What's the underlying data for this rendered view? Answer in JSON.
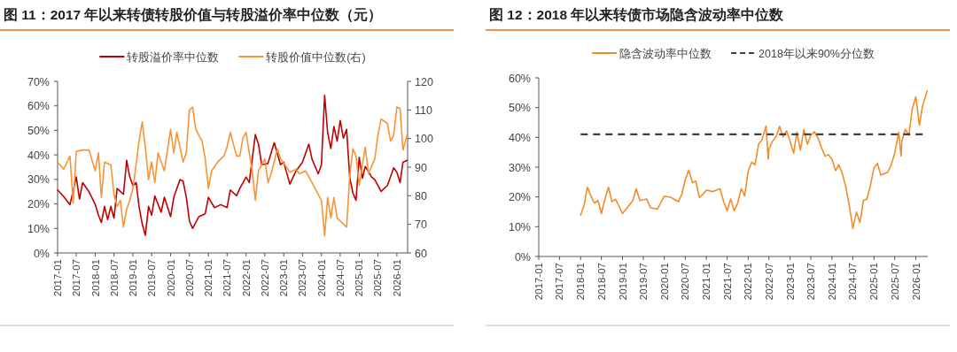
{
  "chart_data": [
    {
      "type": "line",
      "title": "图 11：2017 年以来转债转股价值与转股溢价率中位数（元）",
      "legend": "top",
      "grid": false,
      "xlim": [
        "2017-01",
        "2026-04-15"
      ],
      "xticks": [
        "2017-01",
        "2017-07",
        "2018-01",
        "2018-07",
        "2019-01",
        "2019-07",
        "2020-01",
        "2020-07",
        "2021-01",
        "2021-07",
        "2022-01",
        "2022-07",
        "2023-01",
        "2023-07",
        "2024-01",
        "2024-07",
        "2025-01",
        "2025-07",
        "2026-01"
      ],
      "ylim": [
        0,
        70
      ],
      "yticks": [
        {
          "value": 0,
          "label": "0%"
        },
        {
          "value": 10,
          "label": "10%"
        },
        {
          "value": 20,
          "label": "20%"
        },
        {
          "value": 30,
          "label": "30%"
        },
        {
          "value": 40,
          "label": "40%"
        },
        {
          "value": 50,
          "label": "50%"
        },
        {
          "value": 60,
          "label": "60%"
        },
        {
          "value": 70,
          "label": "70%"
        }
      ],
      "y2lim": [
        60,
        120
      ],
      "y2ticks": [
        60,
        70,
        80,
        90,
        100,
        110,
        120
      ],
      "series": [
        {
          "name": "转股溢价率中位数",
          "color": "#c00000",
          "x": [
            "2017-01",
            "2017-03",
            "2017-05",
            "2017-07",
            "2017-08",
            "2017-09",
            "2017-11",
            "2018-01",
            "2018-02",
            "2018-03",
            "2018-04",
            "2018-05",
            "2018-06",
            "2018-07",
            "2018-08",
            "2018-10",
            "2018-11",
            "2018-12",
            "2019-01",
            "2019-02",
            "2019-03",
            "2019-04",
            "2019-05",
            "2019-06",
            "2019-07",
            "2019-08",
            "2019-10",
            "2019-11",
            "2020-01",
            "2020-02",
            "2020-04",
            "2020-05",
            "2020-06",
            "2020-07",
            "2020-08",
            "2020-10",
            "2020-12",
            "2021-01",
            "2021-03",
            "2021-05",
            "2021-07",
            "2021-08",
            "2021-10",
            "2021-11",
            "2022-01",
            "2022-02",
            "2022-04",
            "2022-05",
            "2022-06",
            "2022-08",
            "2022-10",
            "2022-12",
            "2023-01",
            "2023-03",
            "2023-05",
            "2023-07",
            "2023-09",
            "2023-10",
            "2023-12",
            "2024-01",
            "2024-02",
            "2024-03",
            "2024-04",
            "2024-05",
            "2024-06",
            "2024-07",
            "2024-08",
            "2024-09",
            "2024-10",
            "2024-11",
            "2024-12",
            "2025-01",
            "2025-02",
            "2025-03",
            "2025-05",
            "2025-06",
            "2025-08",
            "2025-10",
            "2025-12",
            "2026-01",
            "2026-02",
            "2026-03",
            "2026-04-10"
          ],
          "values": [
            25.7,
            23,
            19.7,
            31,
            22,
            28.7,
            25,
            19.7,
            15.4,
            12.4,
            19,
            13.6,
            19,
            14.2,
            26.3,
            23.9,
            37.8,
            31,
            27.5,
            28.7,
            19,
            11.8,
            7.2,
            19,
            15.4,
            23.3,
            16.6,
            22.7,
            14.8,
            22.7,
            29.9,
            29.3,
            22.7,
            13,
            10,
            14.8,
            16,
            22.7,
            18.5,
            19.7,
            18.5,
            25.7,
            23.3,
            26.3,
            31,
            28.7,
            48.3,
            44.4,
            36,
            36.5,
            45,
            36,
            37,
            28.1,
            33.5,
            37,
            44.4,
            38.4,
            32.3,
            36,
            64.3,
            49.2,
            42.6,
            51.6,
            45.6,
            54,
            46.8,
            50.4,
            31,
            24.4,
            21.5,
            39,
            30.5,
            35.3,
            31,
            29.9,
            25.1,
            27.5,
            34.7,
            32.9,
            28.7,
            37,
            37.8
          ]
        },
        {
          "name": "转股价值中位数(右)",
          "color": "#f79433",
          "axis": "y2",
          "x": [
            "2017-01",
            "2017-03",
            "2017-05",
            "2017-06",
            "2017-07",
            "2017-09",
            "2017-11",
            "2018-01",
            "2018-02",
            "2018-03",
            "2018-04",
            "2018-06",
            "2018-07",
            "2018-08",
            "2018-09",
            "2018-10",
            "2018-11",
            "2018-12",
            "2019-01",
            "2019-03",
            "2019-04",
            "2019-05",
            "2019-06",
            "2019-07",
            "2019-08",
            "2019-09",
            "2019-11",
            "2020-01",
            "2020-02",
            "2020-03",
            "2020-05",
            "2020-06",
            "2020-07",
            "2020-08",
            "2020-09",
            "2020-11",
            "2020-12",
            "2021-01",
            "2021-02",
            "2021-04",
            "2021-06",
            "2021-07",
            "2021-08",
            "2021-10",
            "2021-11",
            "2021-12",
            "2022-01",
            "2022-02",
            "2022-03",
            "2022-04",
            "2022-05",
            "2022-07",
            "2022-08",
            "2022-09",
            "2022-11",
            "2022-12",
            "2023-02",
            "2023-03",
            "2023-05",
            "2023-06",
            "2023-08",
            "2023-10",
            "2024-01",
            "2024-02",
            "2024-03",
            "2024-04",
            "2024-05",
            "2024-06",
            "2024-08",
            "2024-09",
            "2024-10",
            "2024-11",
            "2024-12",
            "2025-01",
            "2025-03",
            "2025-04",
            "2025-06",
            "2025-07",
            "2025-08",
            "2025-10",
            "2025-11",
            "2025-12",
            "2026-01",
            "2026-02",
            "2026-03",
            "2026-04-10"
          ],
          "values": [
            91.8,
            89.3,
            93.9,
            77.4,
            95.5,
            96,
            96,
            88.7,
            95,
            79.4,
            91.8,
            90.8,
            80.5,
            76.3,
            78.4,
            69.1,
            75.3,
            78.4,
            82.5,
            99.1,
            105.8,
            97,
            85.6,
            91.8,
            84.6,
            95,
            88.7,
            103.2,
            95,
            102.2,
            91.8,
            95,
            110,
            111,
            103.2,
            99.1,
            92.9,
            82.5,
            88.7,
            91.8,
            93.9,
            97,
            102.2,
            93.9,
            93.9,
            100.1,
            102.2,
            95,
            88.7,
            78.4,
            88.7,
            92.9,
            84.6,
            87.7,
            96.5,
            92.9,
            89.8,
            88.2,
            89.3,
            87.7,
            88.7,
            84.6,
            78.4,
            66,
            79.4,
            72.2,
            79.4,
            72.2,
            70.1,
            69.1,
            86.7,
            96.5,
            93.9,
            83.6,
            97,
            87.7,
            92.9,
            101.2,
            106.8,
            105.3,
            99.1,
            101.2,
            111,
            110.5,
            96,
            101.2
          ]
        }
      ]
    },
    {
      "type": "line",
      "title": "图 12：2018 年以来转债市场隐含波动率中位数",
      "legend": "top",
      "grid": false,
      "xlim": [
        "2017-01",
        "2026-04-15"
      ],
      "xticks": [
        "2017-01",
        "2017-07",
        "2018-01",
        "2018-07",
        "2019-01",
        "2019-07",
        "2020-01",
        "2020-07",
        "2021-01",
        "2021-07",
        "2022-01",
        "2022-07",
        "2023-01",
        "2023-07",
        "2024-01",
        "2024-07",
        "2025-01",
        "2025-07",
        "2026-01"
      ],
      "ylim": [
        0,
        60
      ],
      "yticks": [
        {
          "value": 0,
          "label": "0%"
        },
        {
          "value": 10,
          "label": "10%"
        },
        {
          "value": 20,
          "label": "20%"
        },
        {
          "value": 30,
          "label": "30%"
        },
        {
          "value": 40,
          "label": "40%"
        },
        {
          "value": 50,
          "label": "50%"
        },
        {
          "value": 60,
          "label": "60%"
        }
      ],
      "ref_lines": [
        {
          "axis": "y",
          "value": 41,
          "label": "2018年以来90%分位数",
          "color": "#404040",
          "line_style": "dashed"
        }
      ],
      "series": [
        {
          "name": "隐含波动率中位数",
          "color": "#f28c28",
          "x": [
            "2018-01",
            "2018-02",
            "2018-03",
            "2018-04",
            "2018-05",
            "2018-06",
            "2018-07",
            "2018-08",
            "2018-09",
            "2018-10",
            "2018-11",
            "2019-01",
            "2019-02",
            "2019-04",
            "2019-05",
            "2019-06",
            "2019-08",
            "2019-09",
            "2019-11",
            "2020-01",
            "2020-03",
            "2020-05",
            "2020-06",
            "2020-07",
            "2020-08",
            "2020-09",
            "2020-10",
            "2020-11",
            "2020-12",
            "2021-01",
            "2021-03",
            "2021-05",
            "2021-06",
            "2021-07",
            "2021-08",
            "2021-09",
            "2021-10",
            "2021-11",
            "2021-12",
            "2022-01",
            "2022-02",
            "2022-03",
            "2022-04",
            "2022-05",
            "2022-06-05",
            "2022-06-25",
            "2022-07",
            "2022-08",
            "2022-09",
            "2022-10",
            "2022-11",
            "2022-12",
            "2023-01",
            "2023-02",
            "2023-03",
            "2023-04",
            "2023-05",
            "2023-06",
            "2023-07",
            "2023-08",
            "2023-09",
            "2023-10",
            "2023-11",
            "2023-12",
            "2024-01",
            "2024-02",
            "2024-03",
            "2024-04",
            "2024-05",
            "2024-06",
            "2024-07",
            "2024-08",
            "2024-09",
            "2024-10",
            "2024-11",
            "2024-12",
            "2025-01",
            "2025-02",
            "2025-03",
            "2025-05",
            "2025-06",
            "2025-07",
            "2025-08-05",
            "2025-08-25",
            "2025-09",
            "2025-10",
            "2025-11",
            "2025-12",
            "2026-01",
            "2026-02",
            "2026-03",
            "2026-04-10"
          ],
          "values": [
            13.9,
            17.4,
            23.3,
            20.3,
            17.9,
            18.8,
            14.4,
            19.3,
            23.3,
            18.4,
            19.3,
            14.4,
            15.9,
            18.8,
            22.8,
            18.8,
            19.3,
            16.4,
            15.9,
            20.3,
            19.8,
            18.4,
            20.8,
            25.8,
            29,
            24.8,
            25.3,
            19.8,
            20.8,
            22.3,
            21.8,
            22.8,
            18.4,
            15.4,
            19.3,
            15.4,
            17.9,
            22.8,
            20.3,
            28.8,
            31.7,
            30.8,
            37.7,
            39.2,
            43.8,
            32.7,
            36.2,
            38.7,
            40.2,
            43.7,
            40.2,
            42.2,
            38.7,
            34.7,
            41.7,
            35.7,
            42.7,
            37.7,
            40.7,
            41.9,
            39.7,
            36.7,
            33.7,
            34.2,
            32.7,
            28.8,
            30.8,
            27.8,
            23.3,
            16.9,
            9.4,
            14.9,
            11.4,
            18.8,
            19.3,
            23.8,
            29.8,
            31.2,
            27.3,
            28.3,
            30.8,
            34.7,
            41.7,
            33.7,
            38.7,
            42.7,
            40.7,
            49.6,
            53.6,
            44.1,
            50.6,
            55.6
          ]
        }
      ]
    }
  ]
}
